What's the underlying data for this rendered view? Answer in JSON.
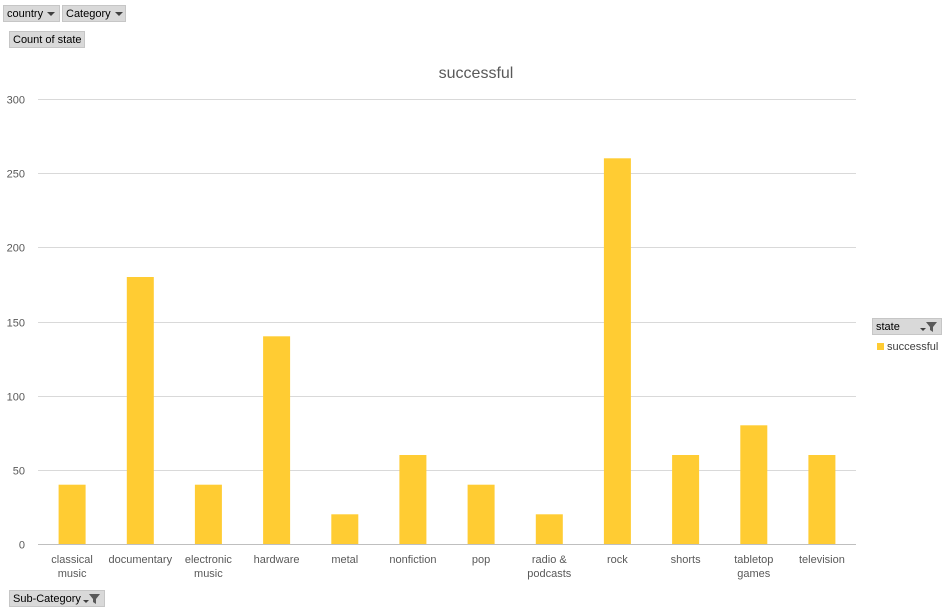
{
  "pivot": {
    "filter_country": "country",
    "filter_category": "Category",
    "values_field": "Count of state",
    "axis_field": "Sub-Category",
    "legend_field": "state"
  },
  "colors": {
    "bar": "#ffcc33",
    "grid": "#d9d9d9",
    "axis": "#bfbfbf"
  },
  "chart_data": {
    "type": "bar",
    "title": "successful",
    "categories": [
      "classical music",
      "documentary",
      "electronic music",
      "hardware",
      "metal",
      "nonfiction",
      "pop",
      "radio & podcasts",
      "rock",
      "shorts",
      "tabletop games",
      "television"
    ],
    "category_lines": [
      [
        "classical",
        "music"
      ],
      [
        "documentary"
      ],
      [
        "electronic",
        "music"
      ],
      [
        "hardware"
      ],
      [
        "metal"
      ],
      [
        "nonfiction"
      ],
      [
        "pop"
      ],
      [
        "radio &",
        "podcasts"
      ],
      [
        "rock"
      ],
      [
        "shorts"
      ],
      [
        "tabletop",
        "games"
      ],
      [
        "television"
      ]
    ],
    "series": [
      {
        "name": "successful",
        "values": [
          40,
          180,
          40,
          140,
          20,
          60,
          40,
          20,
          260,
          60,
          80,
          60
        ]
      }
    ],
    "yticks": [
      0,
      50,
      100,
      150,
      200,
      250,
      300
    ],
    "ylim": [
      0,
      300
    ],
    "grid": true,
    "legend_position": "right"
  }
}
